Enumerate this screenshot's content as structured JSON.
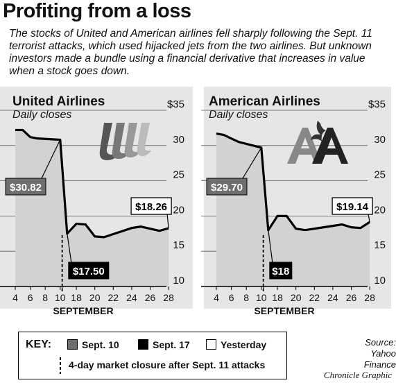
{
  "title": "Profiting from a loss",
  "intro": "The stocks of United and American airlines fell sharply following the Sept. 11 terrorist attacks, which used hijacked jets from the two airlines. But unknown investors made a bundle using a financial derivative that increases in value when a stock goes down.",
  "chart_data": [
    {
      "type": "area",
      "title": "United Airlines",
      "subtitle": "Daily closes",
      "xlabel": "SEPTEMBER",
      "x_ticks": [
        "4",
        "6",
        "8",
        "10",
        "12",
        "14",
        "16",
        "18",
        "20",
        "22",
        "24",
        "26",
        "28"
      ],
      "x_tick_labels": [
        "4",
        "6",
        "8",
        "10",
        "18",
        "20",
        "22",
        "24",
        "26",
        "28"
      ],
      "y_ticks": [
        "$35",
        "30",
        "25",
        "20",
        "15",
        "10"
      ],
      "ylim": [
        10,
        35
      ],
      "x": [
        4,
        5,
        6,
        7,
        10,
        17,
        18,
        19,
        20,
        21,
        24,
        25,
        26,
        27,
        28
      ],
      "values": [
        32.2,
        32.2,
        31.2,
        31.0,
        30.82,
        17.5,
        18.9,
        18.8,
        17.1,
        17.0,
        18.3,
        18.5,
        18.2,
        17.9,
        18.26
      ],
      "annotations": [
        {
          "label": "$30.82",
          "x": 10,
          "y": 30.82,
          "series": "Sept. 10"
        },
        {
          "label": "$17.50",
          "x": 17,
          "y": 17.5,
          "series": "Sept. 17"
        },
        {
          "label": "$18.26",
          "x": 28,
          "y": 18.26,
          "series": "Yesterday"
        }
      ]
    },
    {
      "type": "area",
      "title": "American Airlines",
      "subtitle": "Daily closes",
      "xlabel": "SEPTEMBER",
      "x_ticks": [
        "4",
        "6",
        "8",
        "10",
        "12",
        "14",
        "16",
        "18",
        "20",
        "22",
        "24",
        "26",
        "28"
      ],
      "x_tick_labels": [
        "4",
        "6",
        "8",
        "10",
        "18",
        "20",
        "22",
        "24",
        "26",
        "28"
      ],
      "y_ticks": [
        "$35",
        "30",
        "25",
        "20",
        "15",
        "10"
      ],
      "ylim": [
        10,
        35
      ],
      "x": [
        4,
        5,
        6,
        7,
        10,
        17,
        18,
        19,
        20,
        21,
        24,
        25,
        26,
        27,
        28
      ],
      "values": [
        31.7,
        31.5,
        31.0,
        30.5,
        29.7,
        18.0,
        20.0,
        20.0,
        18.2,
        18.0,
        18.6,
        18.8,
        18.4,
        18.3,
        19.14
      ],
      "annotations": [
        {
          "label": "$29.70",
          "x": 10,
          "y": 29.7,
          "series": "Sept. 10"
        },
        {
          "label": "$18",
          "x": 17,
          "y": 18.0,
          "series": "Sept. 17"
        },
        {
          "label": "$19.14",
          "x": 28,
          "y": 19.14,
          "series": "Yesterday"
        }
      ]
    }
  ],
  "key": {
    "label": "KEY:",
    "items": [
      "Sept. 10",
      "Sept. 17",
      "Yesterday"
    ],
    "closure": "4-day market closure after Sept. 11 attacks"
  },
  "source": {
    "line1": "Source:",
    "line2": "Yahoo Finance"
  },
  "credit": "Chronicle Graphic",
  "colors": {
    "sept10": "#6e6e6e",
    "sept17": "#000000",
    "yesterday": "#ffffff",
    "area": "#d2d2d2",
    "panel": "#e6e6e6"
  }
}
